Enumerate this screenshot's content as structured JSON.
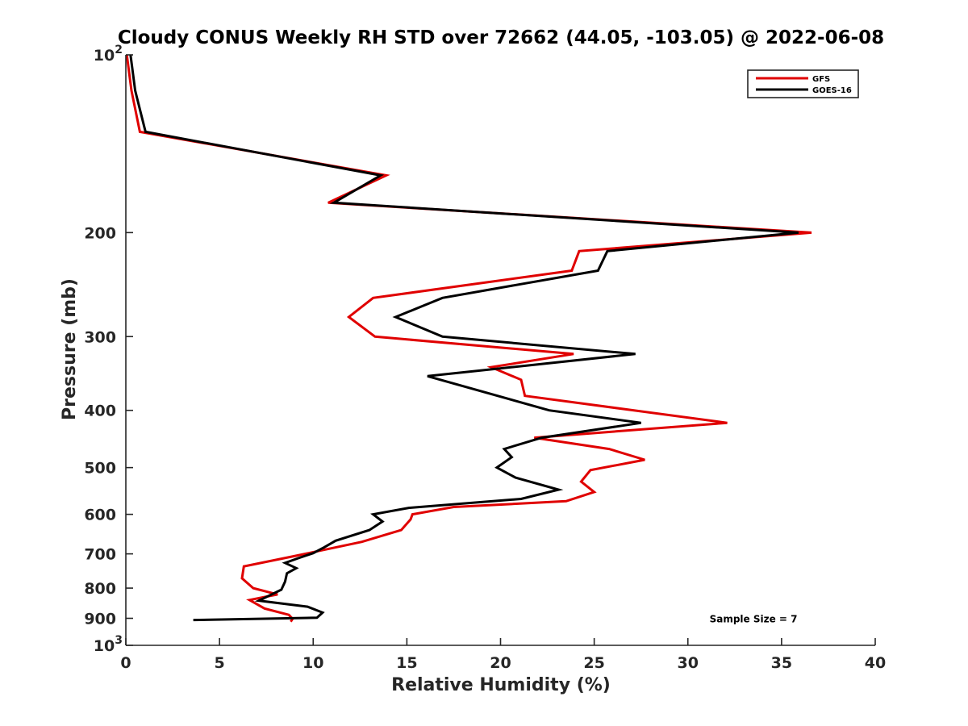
{
  "chart_data": {
    "type": "line",
    "title": "Cloudy CONUS Weekly RH STD over 72662 (44.05, -103.05) @ 2022-06-08",
    "xlabel": "Relative Humidity (%)",
    "ylabel": "Pressure (mb)",
    "xlim": [
      0,
      40
    ],
    "ylim": [
      100,
      1000
    ],
    "y_scale": "log",
    "y_reversed": true,
    "grid": false,
    "legend_position": "top-right",
    "x_ticks": [
      "0",
      "5",
      "10",
      "15",
      "20",
      "25",
      "30",
      "35",
      "40"
    ],
    "y_ticks": [
      {
        "value": 100,
        "label": "10",
        "sup": "2"
      },
      {
        "value": 200,
        "label": "200"
      },
      {
        "value": 300,
        "label": "300"
      },
      {
        "value": 400,
        "label": "400"
      },
      {
        "value": 500,
        "label": "500"
      },
      {
        "value": 600,
        "label": "600"
      },
      {
        "value": 700,
        "label": "700"
      },
      {
        "value": 800,
        "label": "800"
      },
      {
        "value": 900,
        "label": "900"
      },
      {
        "value": 1000,
        "label": "10",
        "sup": "3"
      }
    ],
    "series": [
      {
        "name": "GFS",
        "color": "#e00000",
        "points": [
          [
            0.05,
            100
          ],
          [
            0.3,
            115
          ],
          [
            0.75,
            135
          ],
          [
            13.9,
            160
          ],
          [
            10.8,
            178
          ],
          [
            36.6,
            200
          ],
          [
            24.2,
            215
          ],
          [
            23.8,
            232
          ],
          [
            13.2,
            258
          ],
          [
            11.9,
            278
          ],
          [
            13.3,
            300
          ],
          [
            23.9,
            321
          ],
          [
            19.5,
            338
          ],
          [
            21.1,
            355
          ],
          [
            21.3,
            378
          ],
          [
            32.1,
            420
          ],
          [
            21.8,
            445
          ],
          [
            25.8,
            465
          ],
          [
            27.7,
            485
          ],
          [
            24.8,
            505
          ],
          [
            24.3,
            528
          ],
          [
            25.0,
            550
          ],
          [
            23.5,
            570
          ],
          [
            17.5,
            583
          ],
          [
            15.3,
            600
          ],
          [
            15.2,
            612
          ],
          [
            14.7,
            638
          ],
          [
            12.6,
            668
          ],
          [
            9.1,
            705
          ],
          [
            6.3,
            735
          ],
          [
            6.2,
            770
          ],
          [
            6.8,
            800
          ],
          [
            8.1,
            820
          ],
          [
            6.6,
            838
          ],
          [
            7.4,
            866
          ],
          [
            8.7,
            888
          ],
          [
            8.9,
            902
          ],
          [
            8.8,
            912
          ]
        ]
      },
      {
        "name": "GOES-16",
        "color": "#000000",
        "points": [
          [
            0.25,
            100
          ],
          [
            0.5,
            115
          ],
          [
            1.05,
            135
          ],
          [
            13.6,
            160
          ],
          [
            11.1,
            178
          ],
          [
            35.9,
            200
          ],
          [
            25.7,
            215
          ],
          [
            25.2,
            232
          ],
          [
            16.9,
            258
          ],
          [
            14.4,
            278
          ],
          [
            16.9,
            300
          ],
          [
            27.2,
            321
          ],
          [
            16.1,
            350
          ],
          [
            22.6,
            400
          ],
          [
            27.5,
            420
          ],
          [
            22.2,
            445
          ],
          [
            20.2,
            465
          ],
          [
            20.6,
            480
          ],
          [
            19.8,
            500
          ],
          [
            20.8,
            520
          ],
          [
            23.1,
            545
          ],
          [
            21.1,
            565
          ],
          [
            15.1,
            585
          ],
          [
            13.2,
            600
          ],
          [
            13.7,
            617
          ],
          [
            13.0,
            638
          ],
          [
            11.2,
            665
          ],
          [
            10.6,
            682
          ],
          [
            10.0,
            698
          ],
          [
            9.2,
            712
          ],
          [
            8.5,
            725
          ],
          [
            9.1,
            740
          ],
          [
            8.6,
            755
          ],
          [
            8.5,
            780
          ],
          [
            8.3,
            805
          ],
          [
            7.1,
            840
          ],
          [
            9.7,
            860
          ],
          [
            10.5,
            880
          ],
          [
            10.2,
            898
          ],
          [
            3.6,
            906
          ]
        ]
      }
    ],
    "annotations": [
      {
        "text": "Sample Size = 7",
        "x": 33.5,
        "y": 900
      }
    ]
  }
}
